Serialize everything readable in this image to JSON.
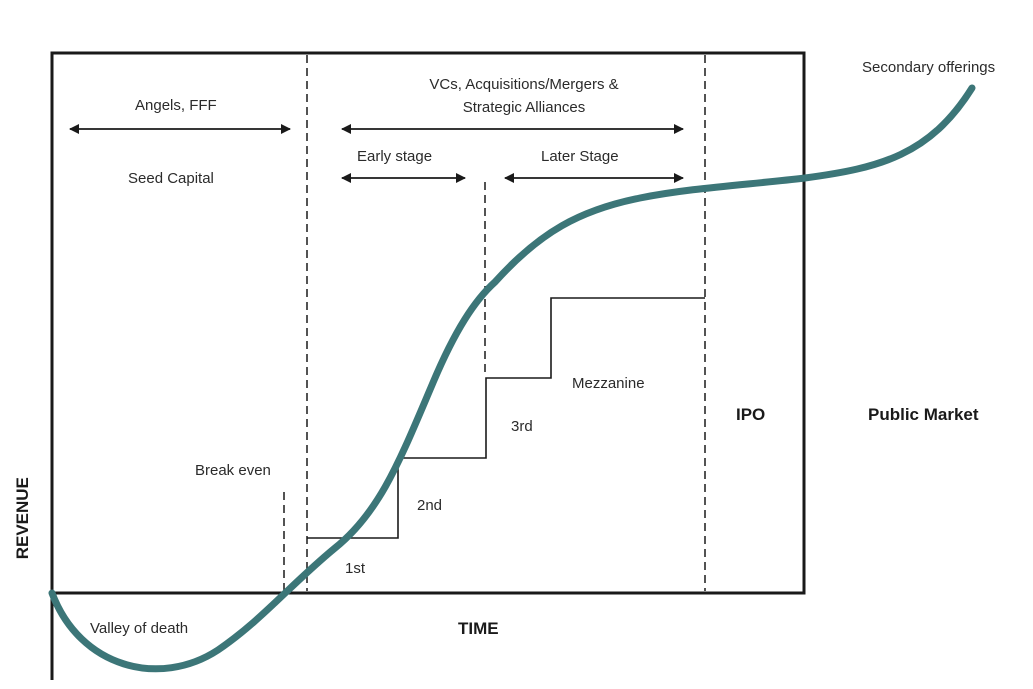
{
  "labels": {
    "angels": "Angels, FFF",
    "seed_capital": "Seed Capital",
    "vcs_line1": "VCs, Acquisitions/Mergers &",
    "vcs_line2": "Strategic Alliances",
    "early_stage": "Early stage",
    "later_stage": "Later Stage",
    "secondary_offerings": "Secondary offerings",
    "mezzanine": "Mezzanine",
    "round_3rd": "3rd",
    "round_2nd": "2nd",
    "round_1st": "1st",
    "break_even": "Break even",
    "ipo": "IPO",
    "public_market": "Public Market",
    "valley_of_death": "Valley of death",
    "x_axis": "TIME",
    "y_axis": "REVENUE"
  },
  "colors": {
    "curve": "#3c7678",
    "lines": "#1a1a1a"
  }
}
